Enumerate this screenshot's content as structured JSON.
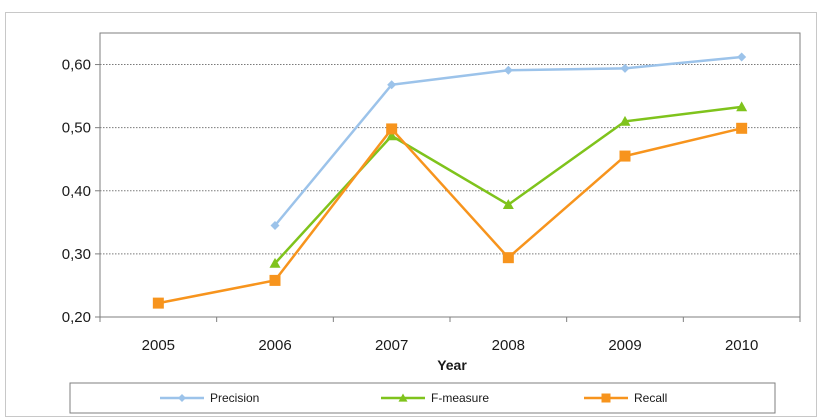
{
  "chart_data": {
    "type": "line",
    "title": "",
    "xlabel": "Year",
    "ylabel": "",
    "categories": [
      "2005",
      "2006",
      "2007",
      "2008",
      "2009",
      "2010"
    ],
    "ylim": [
      0.2,
      0.65
    ],
    "yticks": [
      "0,20",
      "0,30",
      "0,40",
      "0,50",
      "0,60"
    ],
    "ytick_values": [
      0.2,
      0.3,
      0.4,
      0.5,
      0.6
    ],
    "grid": "horizontal-dotted",
    "legend_position": "bottom",
    "series": [
      {
        "name": "Precision",
        "color": "#9cc3ea",
        "marker": "diamond",
        "values": [
          null,
          0.345,
          0.568,
          0.591,
          0.594,
          0.612
        ]
      },
      {
        "name": "F-measure",
        "color": "#7fc31c",
        "marker": "triangle",
        "values": [
          null,
          0.285,
          0.487,
          0.378,
          0.51,
          0.533
        ]
      },
      {
        "name": "Recall",
        "color": "#f7941d",
        "marker": "square",
        "values": [
          0.222,
          0.258,
          0.498,
          0.294,
          0.455,
          0.499
        ]
      }
    ]
  }
}
